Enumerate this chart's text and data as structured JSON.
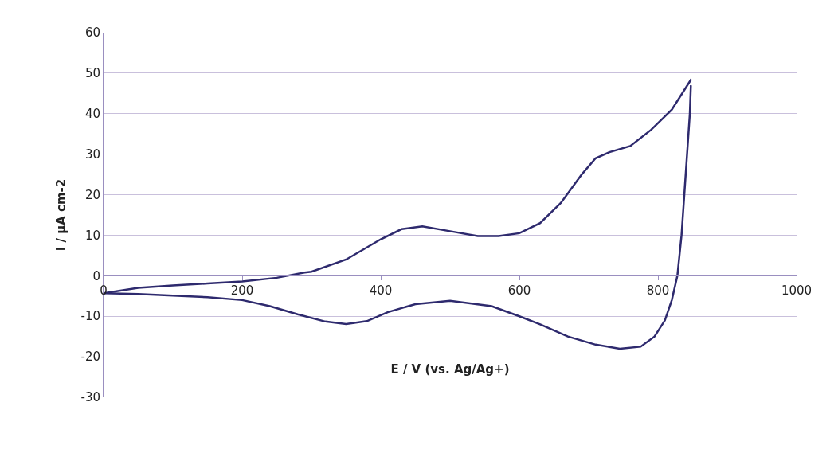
{
  "chart_data": {
    "type": "line",
    "xlabel": "E / V (vs. Ag/Ag+)",
    "ylabel": "I / µA cm-2",
    "xlim": [
      0,
      1000
    ],
    "xticks": [
      0,
      200,
      400,
      600,
      800,
      1000
    ],
    "ylim": [
      -30,
      60
    ],
    "yticks": [
      -30,
      -20,
      -10,
      0,
      10,
      20,
      30,
      40,
      50,
      60
    ],
    "grid": "y",
    "marker": "none",
    "line_style": "solid",
    "series": [
      {
        "color": "#2e2a6e",
        "x": [
          0,
          50,
          100,
          150,
          200,
          250,
          290,
          300,
          350,
          400,
          430,
          460,
          500,
          540,
          570,
          600,
          630,
          660,
          690,
          710,
          730,
          760,
          790,
          820,
          848
        ],
        "values": [
          -4.3,
          -3,
          -2.4,
          -1.9,
          -1.4,
          -0.5,
          0.8,
          1,
          4,
          9,
          11.5,
          12.2,
          11,
          9.8,
          9.8,
          10.5,
          13,
          18,
          25,
          29,
          30.5,
          32,
          36,
          41,
          48.5
        ]
      },
      {
        "color": "#2e2a6e",
        "x": [
          0,
          50,
          100,
          150,
          200,
          240,
          280,
          320,
          350,
          380,
          410,
          450,
          500,
          560,
          600,
          630,
          670,
          710,
          745,
          775,
          795,
          810,
          820,
          828,
          834,
          838,
          842,
          846,
          847.5
        ],
        "values": [
          -4.3,
          -4.5,
          -4.9,
          -5.3,
          -6,
          -7.5,
          -9.5,
          -11.3,
          -11.9,
          -11.2,
          -9,
          -7,
          -6.2,
          -7.5,
          -10,
          -12,
          -15,
          -17,
          -18,
          -17.5,
          -15,
          -11,
          -6,
          0,
          10,
          20,
          30,
          40,
          47
        ]
      }
    ]
  }
}
